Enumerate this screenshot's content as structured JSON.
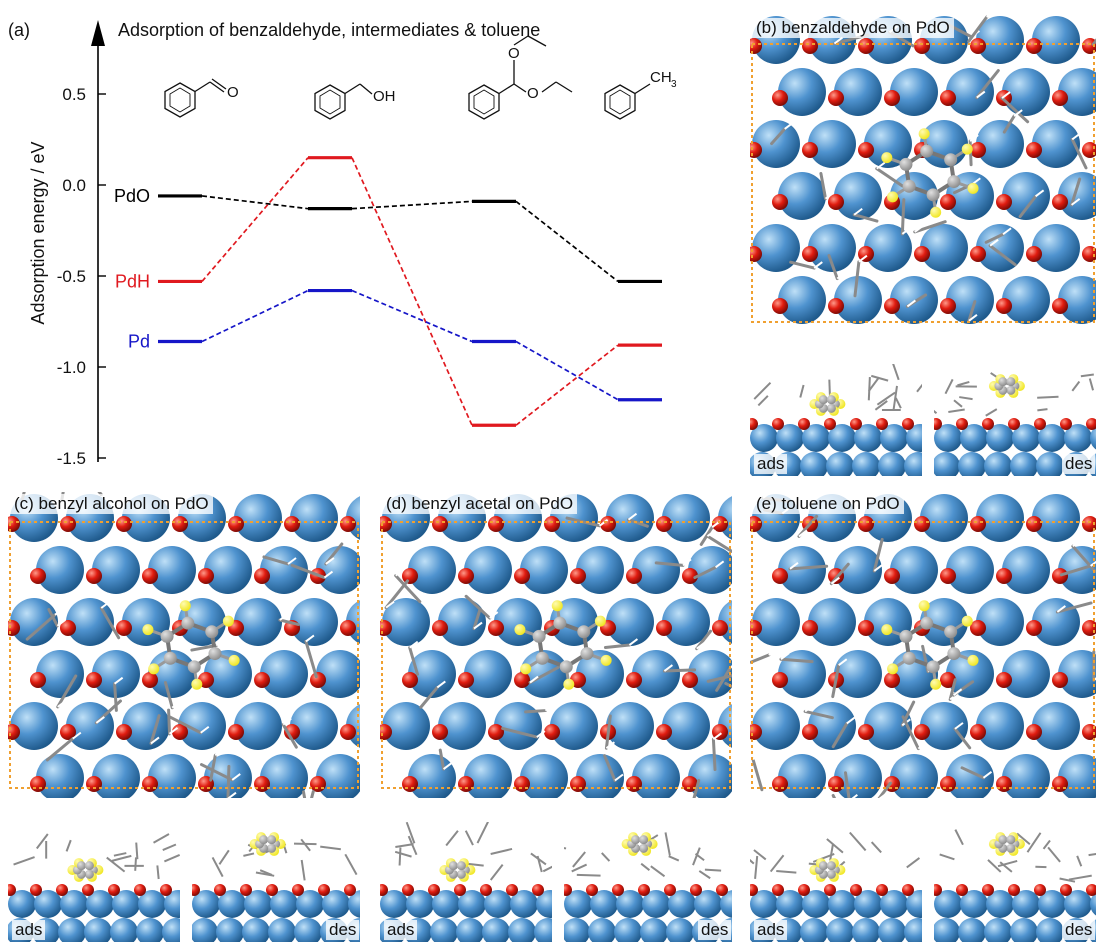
{
  "figure": {
    "panel_a": {
      "label": "(a)",
      "title": "Adsorption of benzaldehyde, intermediates & toluene",
      "molecules": [
        {
          "name": "benzaldehyde",
          "substituent_label": "O"
        },
        {
          "name": "benzyl alcohol",
          "substituent_label": "OH"
        },
        {
          "name": "benzyl acetal",
          "substituent_label": "O"
        },
        {
          "name": "toluene",
          "substituent_label": "CH",
          "subscript": "3"
        }
      ]
    },
    "panels": [
      {
        "id": "b",
        "label": "(b) benzaldehyde on PdO",
        "side_left": "ads",
        "side_right": "des"
      },
      {
        "id": "c",
        "label": "(c) benzyl alcohol on PdO",
        "side_left": "ads",
        "side_right": "des"
      },
      {
        "id": "d",
        "label": "(d) benzyl acetal on PdO",
        "side_left": "ads",
        "side_right": "des"
      },
      {
        "id": "e",
        "label": "(e) toluene on PdO",
        "side_left": "ads",
        "side_right": "des"
      }
    ],
    "colors": {
      "pd_atom": "#4f93cf",
      "o_atom": "#e01c10",
      "c_atom": "#8c8c8c",
      "h_atom": "#f0e620",
      "cell_border": "#f0a030"
    }
  },
  "chart_data": {
    "type": "line",
    "title": "Adsorption of benzaldehyde, intermediates & toluene",
    "xlabel": "",
    "ylabel": "Adsorption energy / eV",
    "ylim": [
      -1.6,
      0.7
    ],
    "yticks": [
      0.5,
      0.0,
      -0.5,
      -1.0,
      -1.5
    ],
    "ytick_labels": [
      "0.5",
      "0.0",
      "-0.5",
      "-1.0",
      "-1.5"
    ],
    "categories": [
      "benzaldehyde",
      "benzyl alcohol",
      "benzyl acetal",
      "toluene"
    ],
    "series": [
      {
        "name": "PdO",
        "color": "#000000",
        "values": [
          -0.06,
          -0.13,
          -0.09,
          -0.53
        ]
      },
      {
        "name": "PdH",
        "color": "#e0191f",
        "values": [
          -0.53,
          0.15,
          -1.32,
          -0.88
        ]
      },
      {
        "name": "Pd",
        "color": "#1616c8",
        "values": [
          -0.86,
          -0.58,
          -0.86,
          -1.18
        ]
      }
    ]
  }
}
